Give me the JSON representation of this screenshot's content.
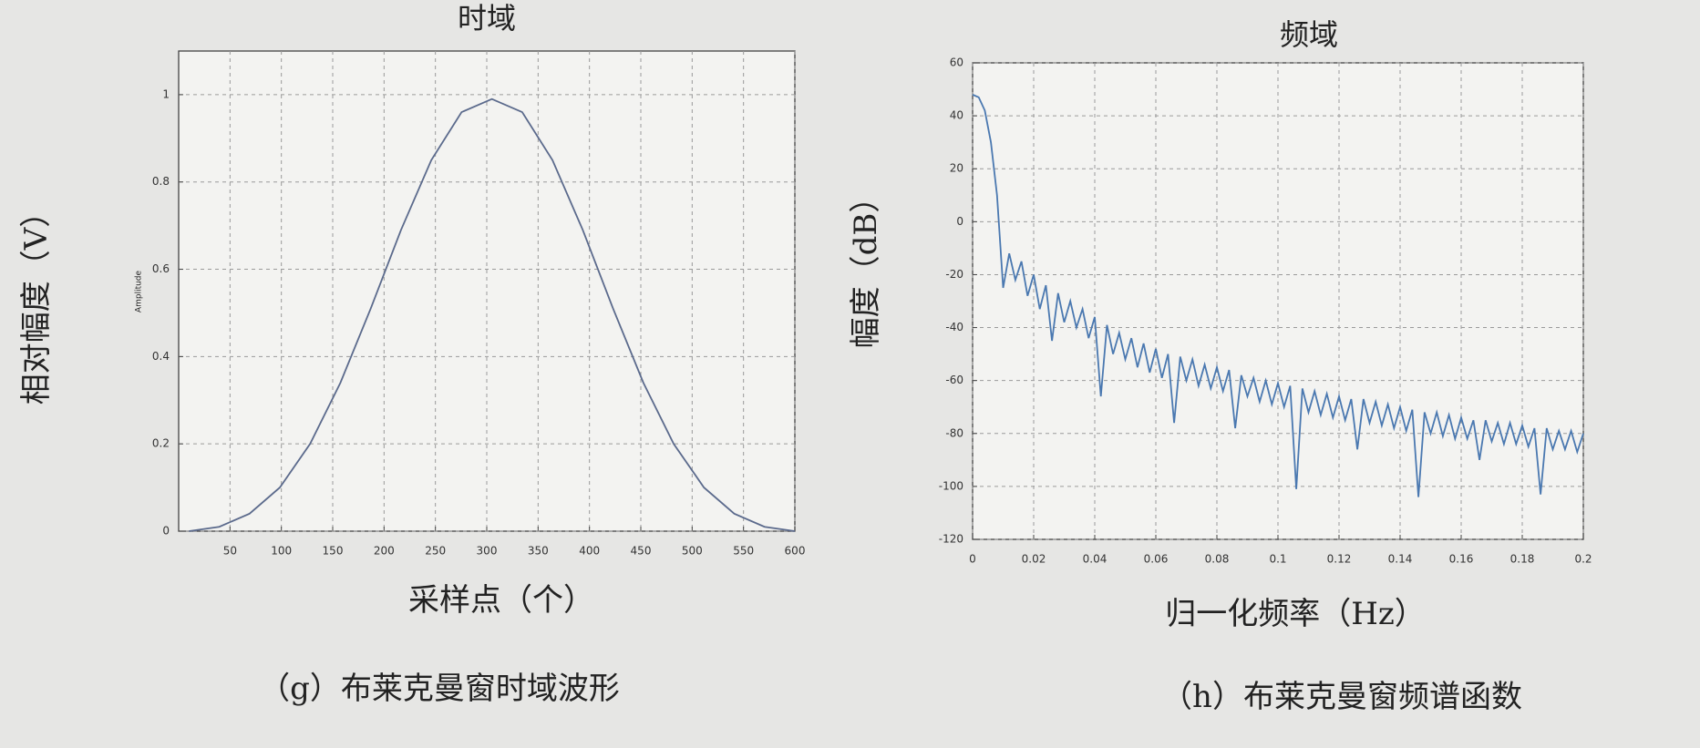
{
  "chart_data": [
    {
      "type": "line",
      "title": "时域",
      "ylabel": "相对幅度（V）",
      "ylabel_inner": "Amplitude",
      "xlabel": "采样点（个）",
      "caption": "（g）布莱克曼窗时域波形",
      "xlim": [
        0,
        600
      ],
      "xticks": [
        50,
        100,
        150,
        200,
        250,
        300,
        350,
        400,
        450,
        500,
        550,
        600
      ],
      "ylim": [
        0,
        1.1
      ],
      "yticks": [
        0,
        0.2,
        0.4,
        0.6,
        0.8,
        1
      ],
      "grid": true,
      "series": [
        {
          "color": "#5b6a8c",
          "x": [
            10,
            39.5,
            69,
            98.5,
            128,
            157.5,
            187,
            216.5,
            246,
            275.5,
            305,
            334.5,
            364,
            393.5,
            423,
            452.5,
            482,
            511.5,
            541,
            570.5,
            600
          ],
          "values": [
            0,
            0.01,
            0.04,
            0.1,
            0.2,
            0.34,
            0.51,
            0.69,
            0.85,
            0.96,
            0.99,
            0.96,
            0.85,
            0.69,
            0.51,
            0.34,
            0.2,
            0.1,
            0.04,
            0.01,
            0
          ]
        }
      ]
    },
    {
      "type": "line",
      "title": "频域",
      "ylabel": "幅度（dB）",
      "xlabel": "归一化频率（Hz）",
      "caption": "（h）布莱克曼窗频谱函数",
      "xlim": [
        0,
        0.2
      ],
      "xticks": [
        0,
        0.02,
        0.04,
        0.06,
        0.08,
        0.1,
        0.12,
        0.14,
        0.16,
        0.18,
        0.2
      ],
      "ylim": [
        -120,
        60
      ],
      "yticks": [
        -120,
        -100,
        -80,
        -60,
        -40,
        -20,
        0,
        20,
        40,
        60
      ],
      "grid": true,
      "series": [
        {
          "color": "#4a78b0",
          "x": [
            0,
            0.002,
            0.004,
            0.006,
            0.008,
            0.01,
            0.012,
            0.014,
            0.016,
            0.018,
            0.02,
            0.022,
            0.024,
            0.026,
            0.028,
            0.03,
            0.032,
            0.034,
            0.036,
            0.038,
            0.04,
            0.042,
            0.044,
            0.046,
            0.048,
            0.05,
            0.052,
            0.054,
            0.056,
            0.058,
            0.06,
            0.062,
            0.064,
            0.066,
            0.068,
            0.07,
            0.072,
            0.074,
            0.076,
            0.078,
            0.08,
            0.082,
            0.084,
            0.086,
            0.088,
            0.09,
            0.092,
            0.094,
            0.096,
            0.098,
            0.1,
            0.102,
            0.104,
            0.106,
            0.108,
            0.11,
            0.112,
            0.114,
            0.116,
            0.118,
            0.12,
            0.122,
            0.124,
            0.126,
            0.128,
            0.13,
            0.132,
            0.134,
            0.136,
            0.138,
            0.14,
            0.142,
            0.144,
            0.146,
            0.148,
            0.15,
            0.152,
            0.154,
            0.156,
            0.158,
            0.16,
            0.162,
            0.164,
            0.166,
            0.168,
            0.17,
            0.172,
            0.174,
            0.176,
            0.178,
            0.18,
            0.182,
            0.184,
            0.186,
            0.188,
            0.19,
            0.192,
            0.194,
            0.196,
            0.198,
            0.2
          ],
          "values": [
            48,
            47,
            42,
            30,
            10,
            -25,
            -12,
            -22,
            -15,
            -28,
            -20,
            -33,
            -24,
            -45,
            -27,
            -38,
            -30,
            -40,
            -33,
            -44,
            -36,
            -66,
            -39,
            -50,
            -42,
            -52,
            -44,
            -55,
            -46,
            -57,
            -48,
            -59,
            -50,
            -76,
            -51,
            -60,
            -52,
            -62,
            -54,
            -63,
            -55,
            -64,
            -56,
            -78,
            -58,
            -66,
            -59,
            -68,
            -60,
            -69,
            -61,
            -70,
            -62,
            -101,
            -63,
            -72,
            -64,
            -73,
            -65,
            -74,
            -66,
            -75,
            -67,
            -86,
            -67,
            -76,
            -68,
            -77,
            -69,
            -78,
            -70,
            -79,
            -71,
            -104,
            -72,
            -80,
            -72,
            -81,
            -73,
            -82,
            -74,
            -82,
            -75,
            -90,
            -75,
            -83,
            -76,
            -84,
            -76,
            -84,
            -77,
            -85,
            -78,
            -103,
            -78,
            -86,
            -79,
            -86,
            -79,
            -87,
            -80
          ]
        }
      ]
    }
  ]
}
